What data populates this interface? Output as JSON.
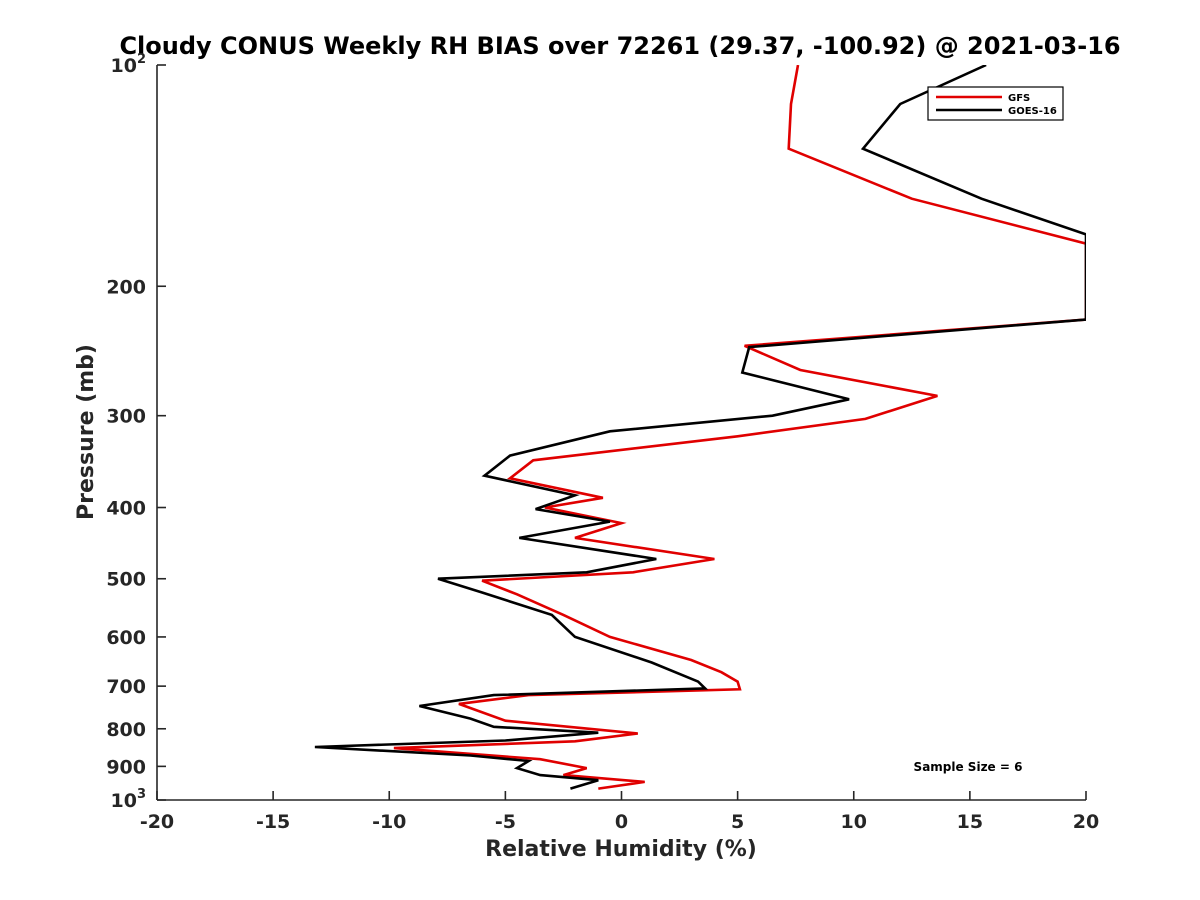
{
  "chart_data": {
    "type": "line",
    "title": "Cloudy CONUS Weekly RH BIAS over 72261 (29.37, -100.92) @ 2021-03-16",
    "xlabel": "Relative Humidity (%)",
    "ylabel": "Pressure (mb)",
    "xlim": [
      -20,
      20
    ],
    "ylim": [
      1000,
      100
    ],
    "yscale": "log",
    "x_ticks": [
      -20,
      -15,
      -10,
      -5,
      0,
      5,
      10,
      15,
      20
    ],
    "x_tick_labels": [
      "-20",
      "-15",
      "-10",
      "-5",
      "0",
      "5",
      "10",
      "15",
      "20"
    ],
    "y_ticks": [
      100,
      200,
      300,
      400,
      500,
      600,
      700,
      800,
      900,
      1000
    ],
    "y_tick_labels": [
      {
        "base": "10",
        "exp": "2"
      },
      {
        "base": "200",
        "exp": ""
      },
      {
        "base": "300",
        "exp": ""
      },
      {
        "base": "400",
        "exp": ""
      },
      {
        "base": "500",
        "exp": ""
      },
      {
        "base": "600",
        "exp": ""
      },
      {
        "base": "700",
        "exp": ""
      },
      {
        "base": "800",
        "exp": ""
      },
      {
        "base": "900",
        "exp": ""
      },
      {
        "base": "10",
        "exp": "3"
      }
    ],
    "grid": false,
    "legend_position": "top-right",
    "annotation": "Sample Size = 6",
    "series": [
      {
        "name": "GFS",
        "color": "#e00000",
        "points": [
          [
            7.6,
            100
          ],
          [
            7.3,
            113
          ],
          [
            7.2,
            130
          ],
          [
            12.5,
            152
          ],
          [
            20,
            175
          ],
          [
            20,
            222
          ],
          [
            5.3,
            241
          ],
          [
            7.7,
            260
          ],
          [
            13.6,
            282
          ],
          [
            10.5,
            303
          ],
          [
            5.0,
            320
          ],
          [
            -3.8,
            345
          ],
          [
            -4.8,
            365
          ],
          [
            -0.8,
            388
          ],
          [
            -3.3,
            400
          ],
          [
            0,
            420
          ],
          [
            -2.0,
            440
          ],
          [
            4.0,
            470
          ],
          [
            0.5,
            490
          ],
          [
            -6.0,
            503
          ],
          [
            -4.5,
            525
          ],
          [
            -2.5,
            560
          ],
          [
            -0.5,
            600
          ],
          [
            3.0,
            645
          ],
          [
            4.3,
            670
          ],
          [
            5.0,
            690
          ],
          [
            5.1,
            707
          ],
          [
            -4.0,
            720
          ],
          [
            -7.0,
            740
          ],
          [
            -5.0,
            780
          ],
          [
            0.7,
            812
          ],
          [
            -2.0,
            832
          ],
          [
            -9.8,
            850
          ],
          [
            -3.5,
            880
          ],
          [
            -1.5,
            905
          ],
          [
            -2.5,
            925
          ],
          [
            1.0,
            945
          ],
          [
            -1.0,
            965
          ]
        ]
      },
      {
        "name": "GOES-16",
        "color": "#000000",
        "points": [
          [
            15.7,
            100
          ],
          [
            12.0,
            113
          ],
          [
            10.4,
            130
          ],
          [
            15.5,
            152
          ],
          [
            20,
            170
          ],
          [
            20,
            222
          ],
          [
            5.5,
            242
          ],
          [
            5.2,
            262
          ],
          [
            9.8,
            285
          ],
          [
            6.5,
            300
          ],
          [
            -0.5,
            315
          ],
          [
            -4.8,
            340
          ],
          [
            -5.9,
            362
          ],
          [
            -2.0,
            385
          ],
          [
            -3.7,
            402
          ],
          [
            -0.5,
            418
          ],
          [
            -4.4,
            440
          ],
          [
            1.5,
            470
          ],
          [
            -1.5,
            490
          ],
          [
            -7.9,
            500
          ],
          [
            -6.0,
            522
          ],
          [
            -3.0,
            560
          ],
          [
            -2.0,
            600
          ],
          [
            1.3,
            650
          ],
          [
            3.3,
            690
          ],
          [
            3.6,
            705
          ],
          [
            -5.5,
            720
          ],
          [
            -8.7,
            745
          ],
          [
            -6.5,
            775
          ],
          [
            -5.5,
            795
          ],
          [
            -1.0,
            810
          ],
          [
            -5.0,
            830
          ],
          [
            -13.2,
            847
          ],
          [
            -6.5,
            870
          ],
          [
            -4.0,
            885
          ],
          [
            -4.5,
            905
          ],
          [
            -3.5,
            925
          ],
          [
            -1.0,
            940
          ],
          [
            -2.2,
            965
          ]
        ]
      }
    ]
  }
}
